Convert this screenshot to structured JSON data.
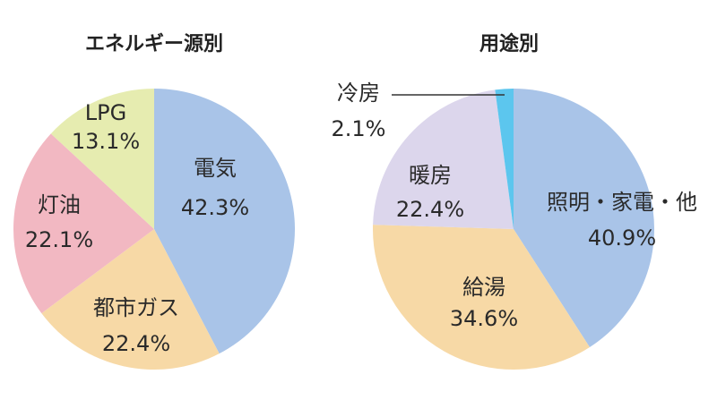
{
  "chart_data": [
    {
      "type": "pie",
      "title": "エネルギー源別",
      "slices": [
        {
          "label": "電気",
          "value": 42.3,
          "value_label": "42.3%",
          "color": "#a9c4e8"
        },
        {
          "label": "都市ガス",
          "value": 22.4,
          "value_label": "22.4%",
          "color": "#f7d9a6"
        },
        {
          "label": "灯油",
          "value": 22.1,
          "value_label": "22.1%",
          "color": "#f2b8c2"
        },
        {
          "label": "LPG",
          "value": 13.1,
          "value_label": "13.1%",
          "color": "#e6ecb0"
        }
      ]
    },
    {
      "type": "pie",
      "title": "用途別",
      "slices": [
        {
          "label": "照明・家電・他",
          "value": 40.9,
          "value_label": "40.9%",
          "color": "#a9c4e8"
        },
        {
          "label": "給湯",
          "value": 34.6,
          "value_label": "34.6%",
          "color": "#f7d9a6"
        },
        {
          "label": "暖房",
          "value": 22.4,
          "value_label": "22.4%",
          "color": "#dcd6ec"
        },
        {
          "label": "冷房",
          "value": 2.1,
          "value_label": "2.1%",
          "color": "#5cc6ee"
        }
      ]
    }
  ]
}
